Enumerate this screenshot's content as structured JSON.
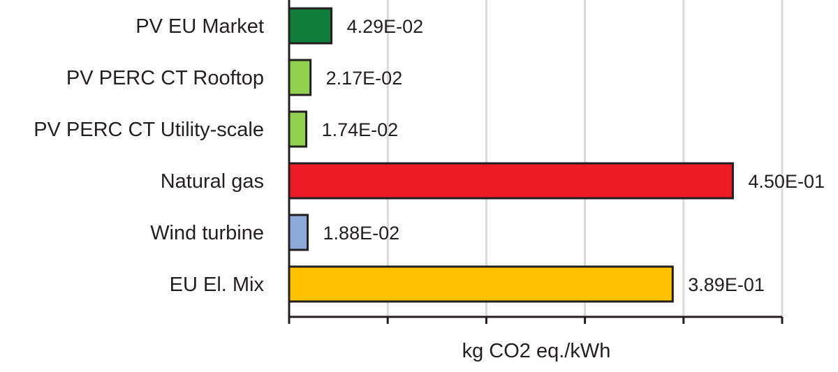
{
  "chart_data": {
    "type": "bar",
    "orientation": "horizontal",
    "categories": [
      "PV EU Market",
      "PV PERC CT Rooftop",
      "PV PERC CT Utility-scale",
      "Natural gas",
      "Wind turbine",
      "EU El. Mix"
    ],
    "values": [
      0.0429,
      0.0217,
      0.0174,
      0.45,
      0.0188,
      0.389
    ],
    "value_labels": [
      "4.29E-02",
      "2.17E-02",
      "1.74E-02",
      "4.50E-01",
      "1.88E-02",
      "3.89E-01"
    ],
    "colors": [
      "#0f7c3a",
      "#92d050",
      "#92d050",
      "#ed1c24",
      "#8eaadb",
      "#ffc000"
    ],
    "xlabel": "kg CO2 eq./kWh",
    "ylabel": "",
    "title": "",
    "xlim": [
      0,
      0.5
    ],
    "x_tick_step": 0.1,
    "x_tick_labels_shown": false,
    "grid": true,
    "legend": "none"
  }
}
